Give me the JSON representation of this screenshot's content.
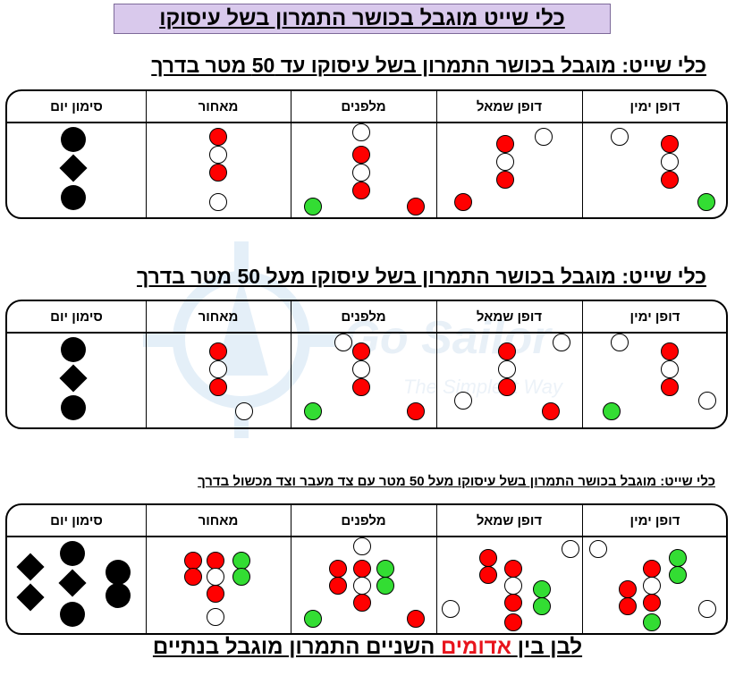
{
  "main_title": "כלי שייט מוגבל בכושר התמרון בשל עיסוקו",
  "headers": [
    "דופן ימין",
    "דופן שמאל",
    "מלפנים",
    "מאחור",
    "סימון יום"
  ],
  "sections": [
    {
      "title": "כלי שייט: מוגבל בכושר התמרון בשל עיסוקו עד 50 מטר בדרך"
    },
    {
      "title": "כלי שייט: מוגבל בכושר התמרון בשל עיסוקו מעל 50 מטר בדרך"
    },
    {
      "title": "כלי שייט: מוגבל בכושר התמרון בשל עיסוקו מעל 50 מטר עם צד מעבר וצד מכשול בדרך"
    }
  ],
  "footer": {
    "prefix": "לבן בין",
    "highlight": "אדומים",
    "suffix": "השניים התמרון מוגבל בנתיים"
  },
  "watermark": {
    "brand": "Go Sailor",
    "tagline": "The Simplest Way"
  },
  "colors": {
    "title_bg": "#d9c9ec",
    "red_light": "#ff0000",
    "green_light": "#33dd33",
    "white_light": "#ffffff",
    "footer_highlight": "#e8141c"
  }
}
